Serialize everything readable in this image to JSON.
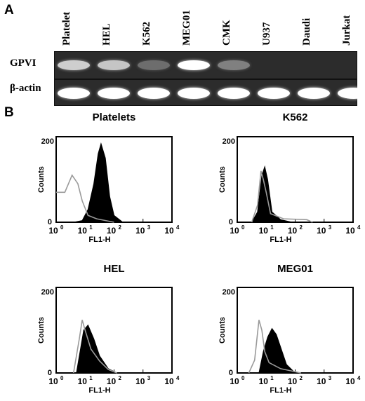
{
  "panel_a": {
    "letter": "A",
    "lanes": [
      "Platelet",
      "HEL",
      "K562",
      "MEG01",
      "CMK",
      "U937",
      "Daudi",
      "Jurkat"
    ],
    "rows": [
      {
        "label": "GPVI",
        "intensities": [
          0.75,
          0.7,
          0.25,
          1.0,
          0.35,
          0.0,
          0.0,
          0.0
        ]
      },
      {
        "label": "β-actin",
        "intensities": [
          1.0,
          1.0,
          1.0,
          1.0,
          1.0,
          1.0,
          1.0,
          1.0
        ]
      }
    ]
  },
  "panel_b": {
    "letter": "B",
    "y_label": "Counts",
    "x_label": "FL1-H",
    "y_ticks": [
      "0",
      "200"
    ],
    "x_ticks": [
      "10",
      "10",
      "10",
      "10",
      "10"
    ],
    "x_tick_exponents": [
      "0",
      "1",
      "2",
      "3",
      "4"
    ],
    "plots": [
      {
        "title": "Platelets"
      },
      {
        "title": "K562"
      },
      {
        "title": "HEL"
      },
      {
        "title": "MEG01"
      }
    ]
  }
}
